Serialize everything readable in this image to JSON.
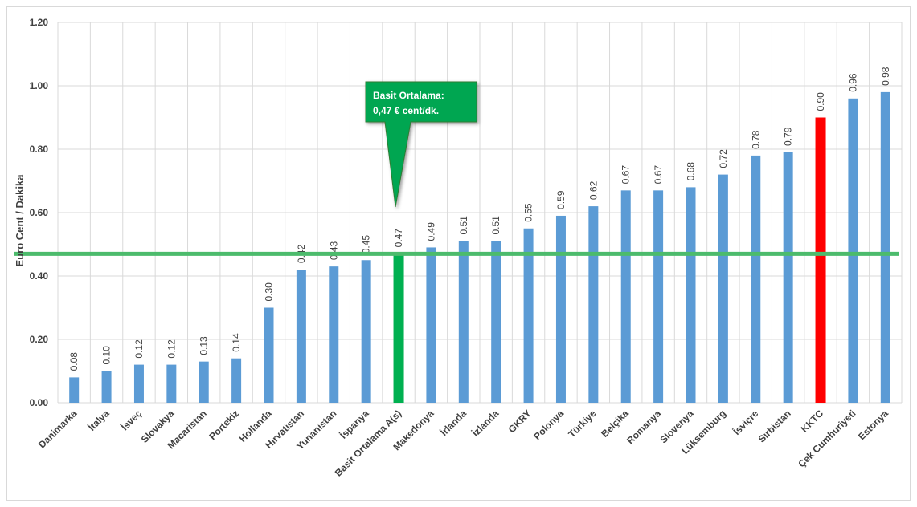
{
  "chart_data": {
    "type": "bar",
    "ylabel": "Euro Cent / Dakika",
    "xlabel": "",
    "ylim": [
      0,
      1.2
    ],
    "yticks": [
      "0.00",
      "0.20",
      "0.40",
      "0.60",
      "0.80",
      "1.00",
      "1.20"
    ],
    "ytick_values": [
      0,
      0.2,
      0.4,
      0.6,
      0.8,
      1.0,
      1.2
    ],
    "grid": true,
    "categories": [
      "Danimarka",
      "İtalya",
      "İsveç",
      "Slovakya",
      "Macaristan",
      "Portekiz",
      "Hollanda",
      "Hırvatistan",
      "Yunanistan",
      "İspanya",
      "Basit Ortalama A(s)",
      "Makedonya",
      "İrlanda",
      "İzlanda",
      "GKRY",
      "Polonya",
      "Türkiye",
      "Belçika",
      "Romanya",
      "Slovenya",
      "Lüksemburg",
      "İsviçre",
      "Sırbistan",
      "KKTC",
      "Çek Cumhuriyeti",
      "Estonya"
    ],
    "values": [
      0.08,
      0.1,
      0.12,
      0.12,
      0.13,
      0.14,
      0.3,
      0.42,
      0.43,
      0.45,
      0.47,
      0.49,
      0.51,
      0.51,
      0.55,
      0.59,
      0.62,
      0.67,
      0.67,
      0.68,
      0.72,
      0.78,
      0.79,
      0.9,
      0.96,
      0.98
    ],
    "data_labels": [
      "0.08",
      "0.10",
      "0.12",
      "0.12",
      "0.13",
      "0.14",
      "0.30",
      "0.42",
      "0.43",
      "0.45",
      "0.47",
      "0.49",
      "0.51",
      "0.51",
      "0.55",
      "0.59",
      "0.62",
      "0.67",
      "0.67",
      "0.68",
      "0.72",
      "0.78",
      "0.79",
      "0.90",
      "0.96",
      "0.98"
    ],
    "average_line": 0.47,
    "annotation": {
      "line1": "Basit Ortalama:",
      "line2": "0,47 € cent/dk."
    },
    "colors": {
      "default": "#5b9bd5",
      "highlight_average": "#00b050",
      "highlight_kktc": "#ff0000",
      "average_line": "#4cbb6c",
      "callout": "#00a651",
      "grid": "#d9d9d9"
    },
    "highlighted": {
      "Basit Ortalama A(s)": "highlight_average",
      "KKTC": "highlight_kktc"
    }
  }
}
